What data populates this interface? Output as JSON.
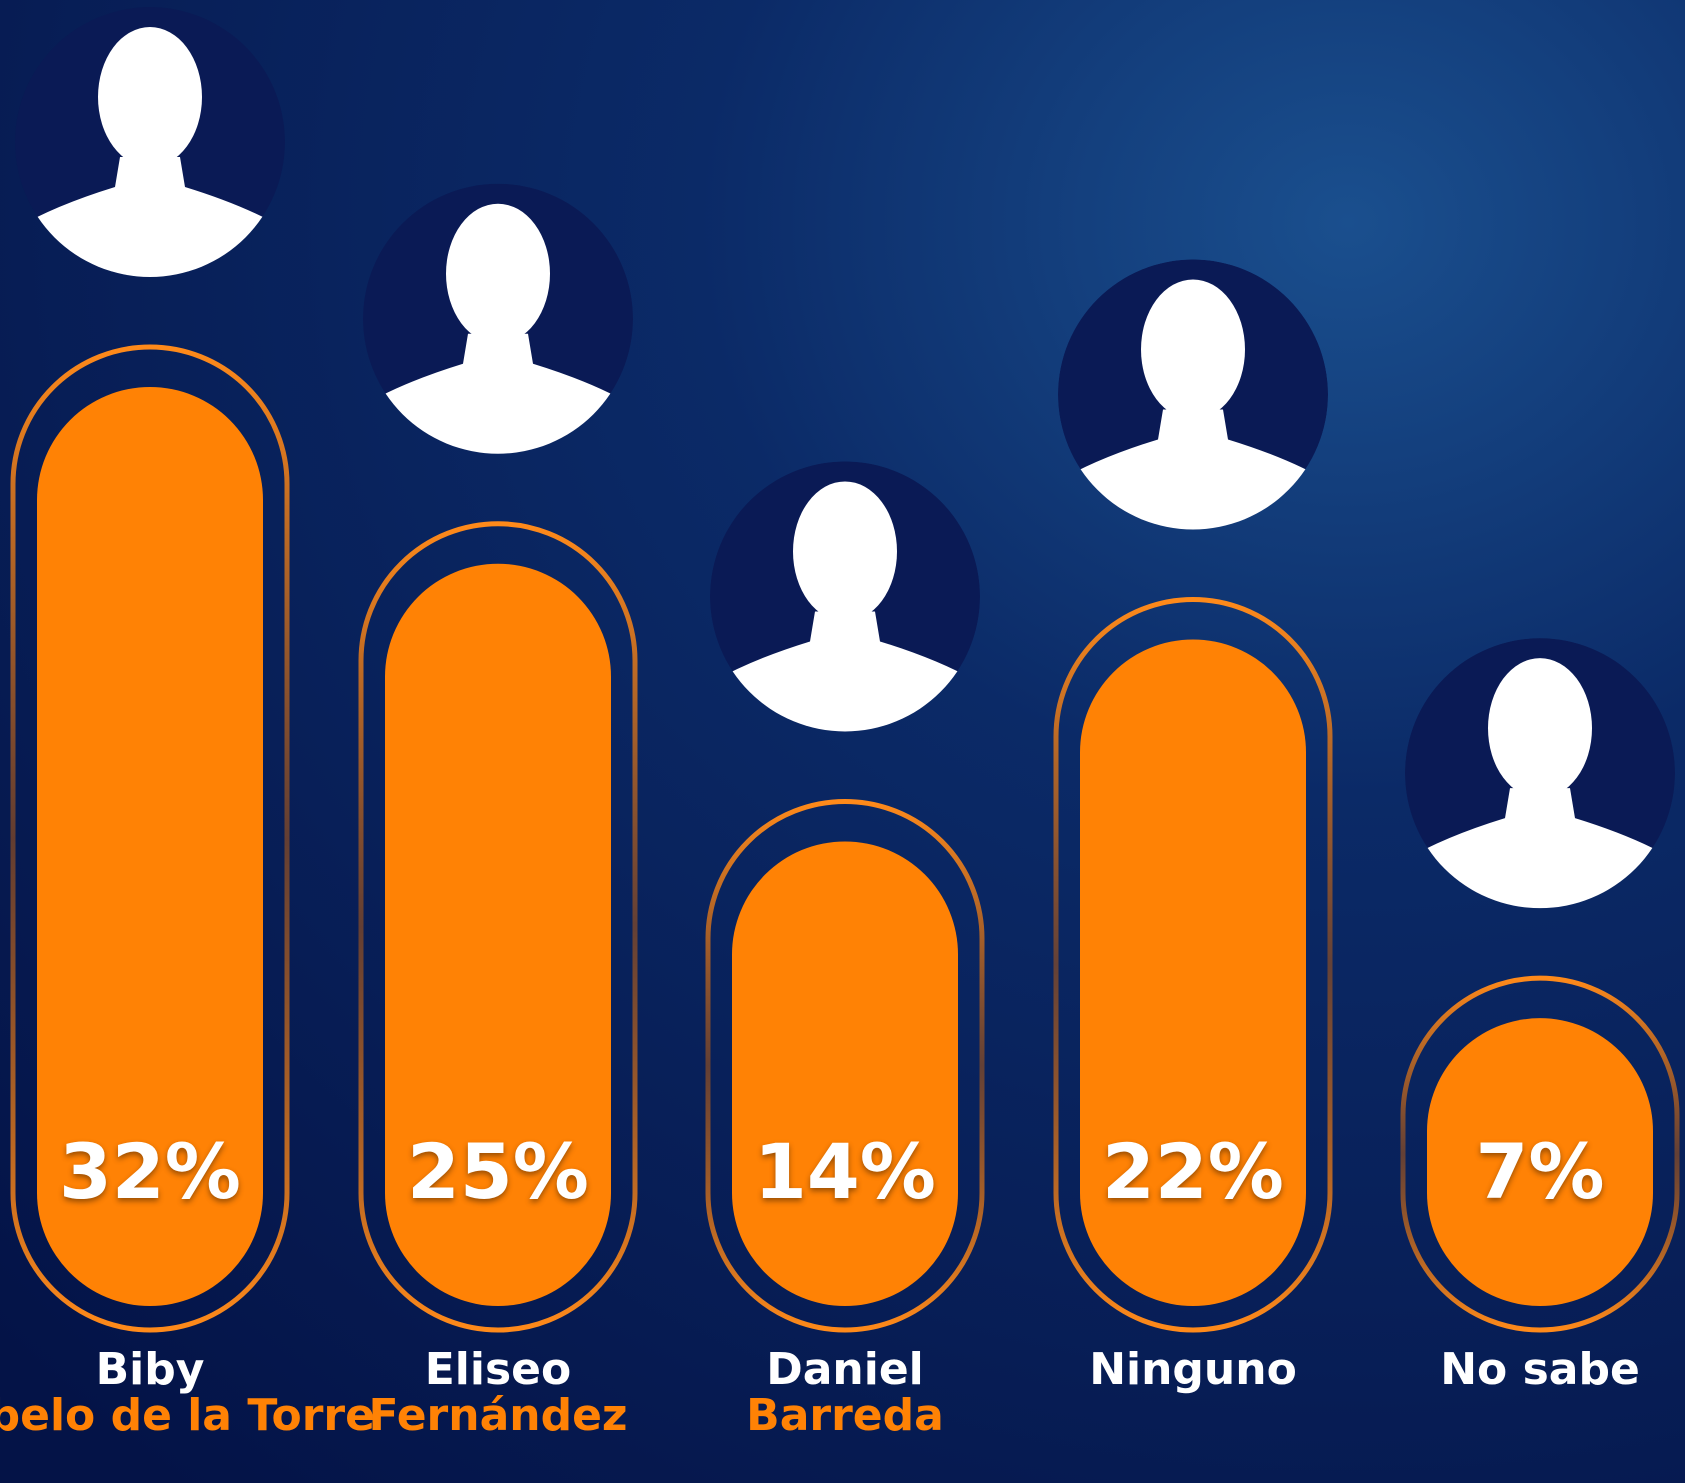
{
  "chart_data": {
    "type": "bar",
    "categories": [
      [
        "Biby",
        "Rabelo de la Torre"
      ],
      [
        "Eliseo",
        "Fernández"
      ],
      [
        "Daniel",
        "Barreda"
      ],
      [
        "Ninguno"
      ],
      [
        "No sabe"
      ]
    ],
    "values": [
      32,
      25,
      14,
      22,
      7
    ],
    "value_labels": [
      "32%",
      "25%",
      "14%",
      "22%",
      "7%"
    ],
    "color": "#ff8205",
    "ylim": [
      -4.4,
      32
    ]
  }
}
